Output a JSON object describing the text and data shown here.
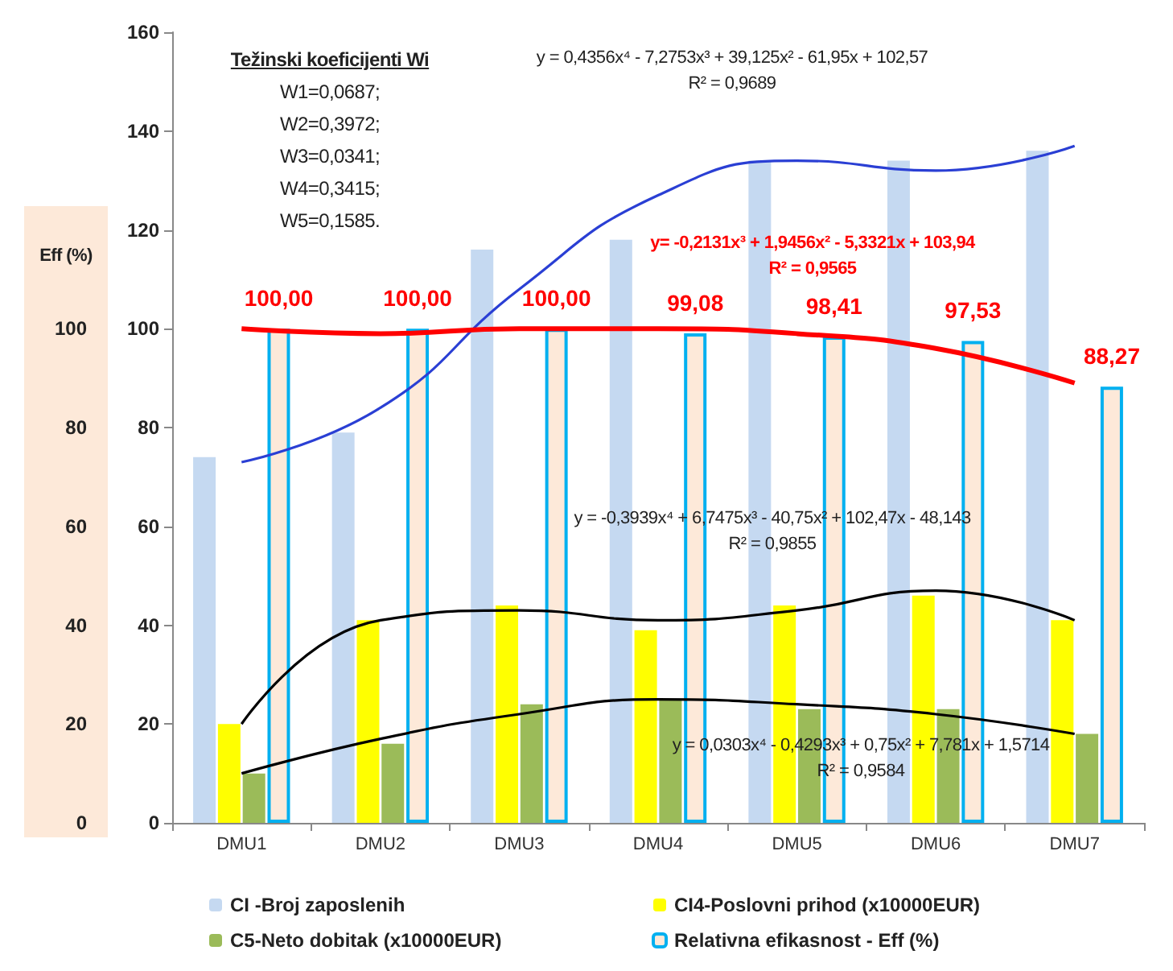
{
  "chart_data": {
    "type": "bar",
    "categories": [
      "DMU1",
      "DMU2",
      "DMU3",
      "DMU4",
      "DMU5",
      "DMU6",
      "DMU7"
    ],
    "ylim": [
      0,
      160
    ],
    "yticks": [
      0,
      20,
      40,
      60,
      80,
      100,
      120,
      140,
      160
    ],
    "y2lim": [
      0,
      160
    ],
    "y2ticks": [
      0,
      20,
      40,
      60,
      80,
      100
    ],
    "y2label": "Eff (%)",
    "grid": false,
    "legend": "bottom",
    "series": [
      {
        "name": "CI -Broj zaposlenih",
        "color": "#c5d9f1",
        "values": [
          74,
          79,
          116,
          118,
          134,
          134,
          136
        ]
      },
      {
        "name": "CI4-Poslovni prihod (x10000EUR)",
        "color": "#ffff00",
        "values": [
          20,
          41,
          44,
          39,
          44,
          46,
          41
        ]
      },
      {
        "name": "C5-Neto dobitak (x10000EUR)",
        "color": "#9bbb59",
        "values": [
          10,
          16,
          24,
          25,
          23,
          23,
          18
        ]
      },
      {
        "name": "Relativna efikasnost - Eff (%)",
        "color": "#fde9d9",
        "axis": "y2",
        "values": [
          100,
          100,
          100,
          99.08,
          98.41,
          97.53,
          88.27
        ],
        "value_labels": [
          "100,00",
          "100,00",
          "100,00",
          "99,08",
          "98,41",
          "97,53",
          "88,27"
        ]
      },
      {
        "type": "line",
        "color": "#2a3fd4",
        "values": [
          73,
          84,
          108,
          127,
          134,
          132,
          137
        ]
      },
      {
        "type": "line",
        "color": "#ff0000",
        "values": [
          100,
          99,
          100,
          100,
          99,
          96,
          89
        ]
      },
      {
        "type": "line",
        "color": "#000000",
        "values": [
          20,
          41,
          43,
          41,
          43,
          47,
          41
        ]
      },
      {
        "type": "line",
        "color": "#000000",
        "values": [
          10,
          17,
          22,
          25,
          24,
          22,
          18
        ]
      }
    ],
    "annotations": [
      "Težinski koeficijenti Wi",
      "W1=0,0687;",
      "W2=0,3972;",
      "W3=0,0341;",
      "W4=0,3415;",
      "W5=0,1585.",
      "y = 0,4356x⁴ - 7,2753x³ + 39,125x² - 61,95x + 102,57",
      "R² = 0,9689",
      "y= -0,2131x³ + 1,9456x² - 5,3321x + 103,94",
      "R² = 0,9565",
      "y = -0,3939x⁴ + 6,7475x³ - 40,75x² + 102,47x - 48,143",
      "R² = 0,9855",
      "y = 0,0303x⁴ - 0,4293x³ + 0,75x² + 7,781x + 1,5714",
      "R² = 0,9584"
    ]
  }
}
